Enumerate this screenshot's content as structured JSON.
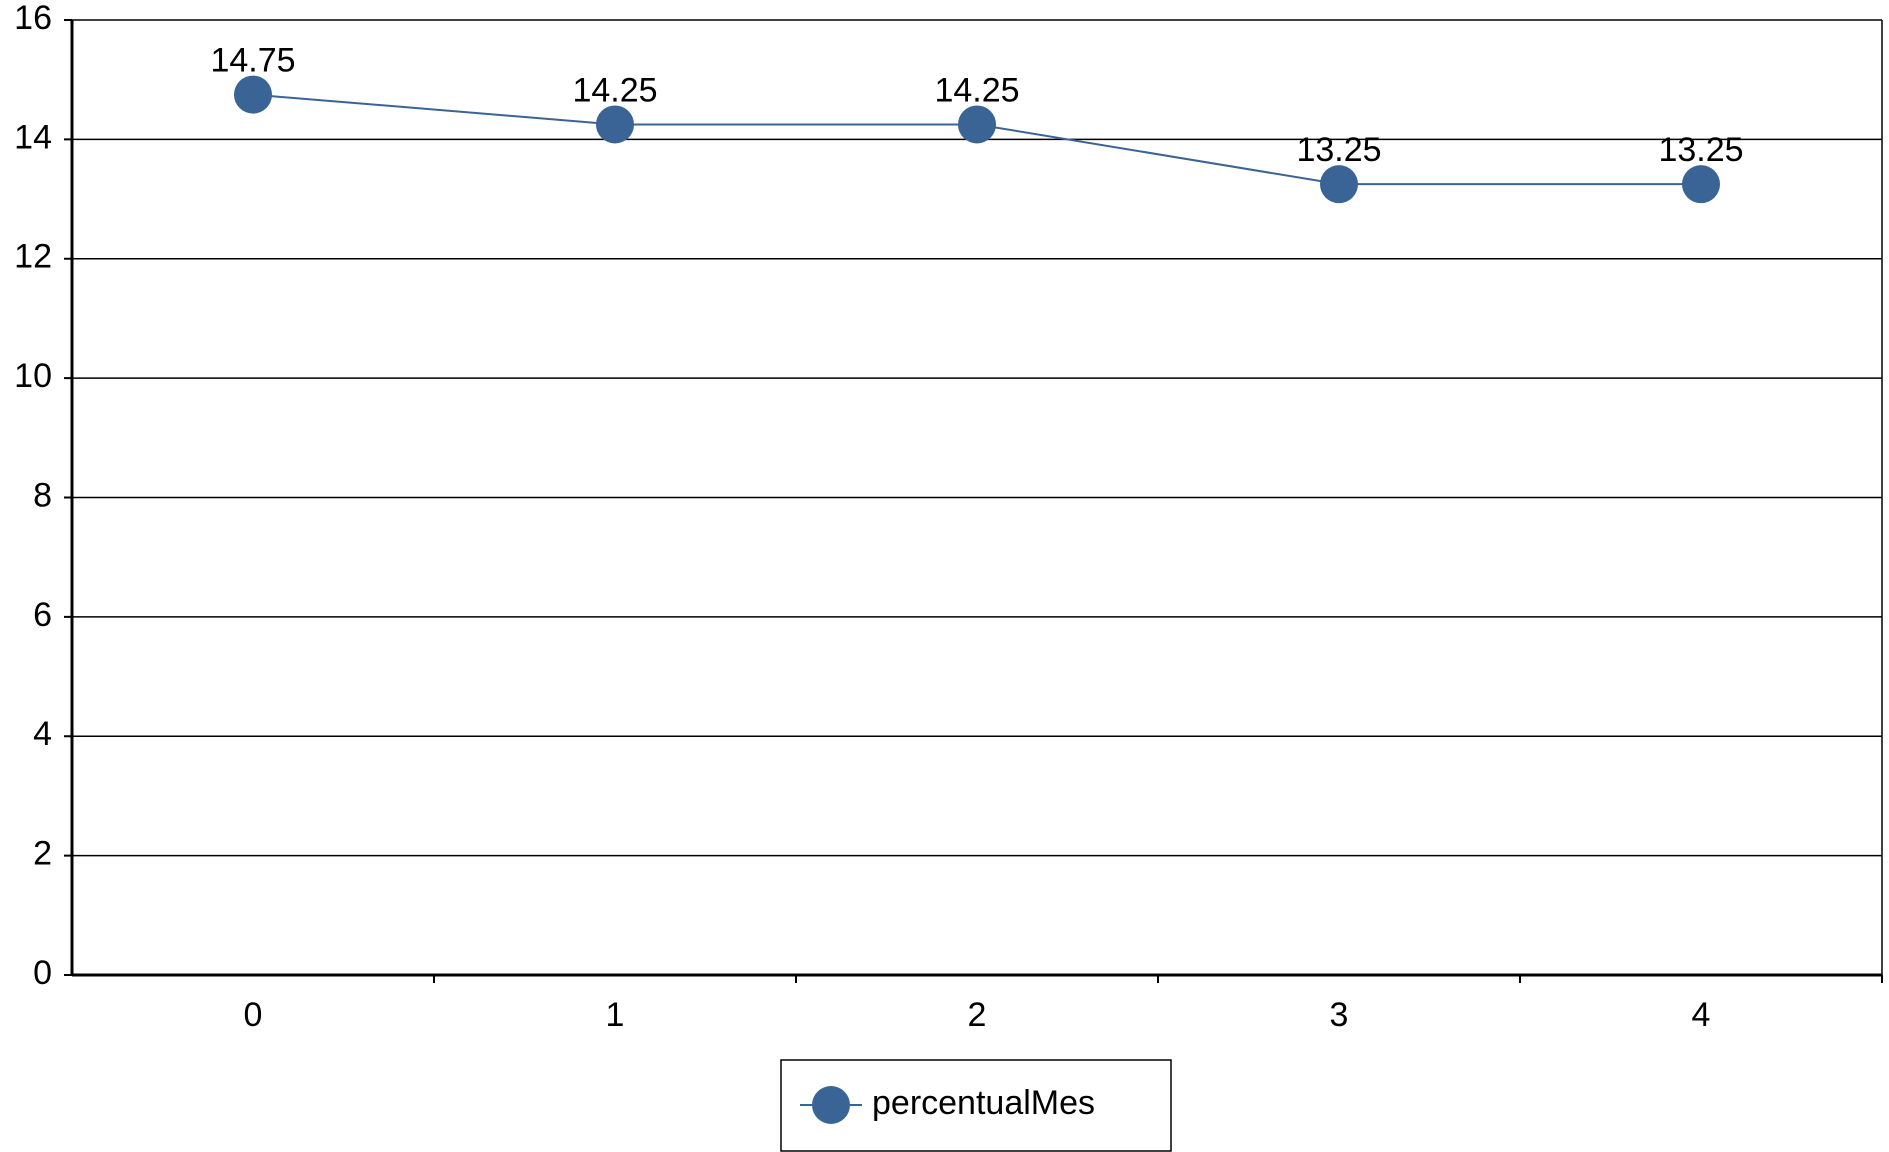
{
  "chart_data": {
    "type": "line",
    "categories": [
      "0",
      "1",
      "2",
      "3",
      "4"
    ],
    "series": [
      {
        "name": "percentualMes",
        "color": "#3a6496",
        "values": [
          14.75,
          14.25,
          14.25,
          13.25,
          13.25
        ]
      }
    ],
    "ylim": [
      0,
      16
    ],
    "yticks": [
      0,
      2,
      4,
      6,
      8,
      10,
      12,
      14,
      16
    ],
    "grid": true,
    "legend": "bottom"
  }
}
